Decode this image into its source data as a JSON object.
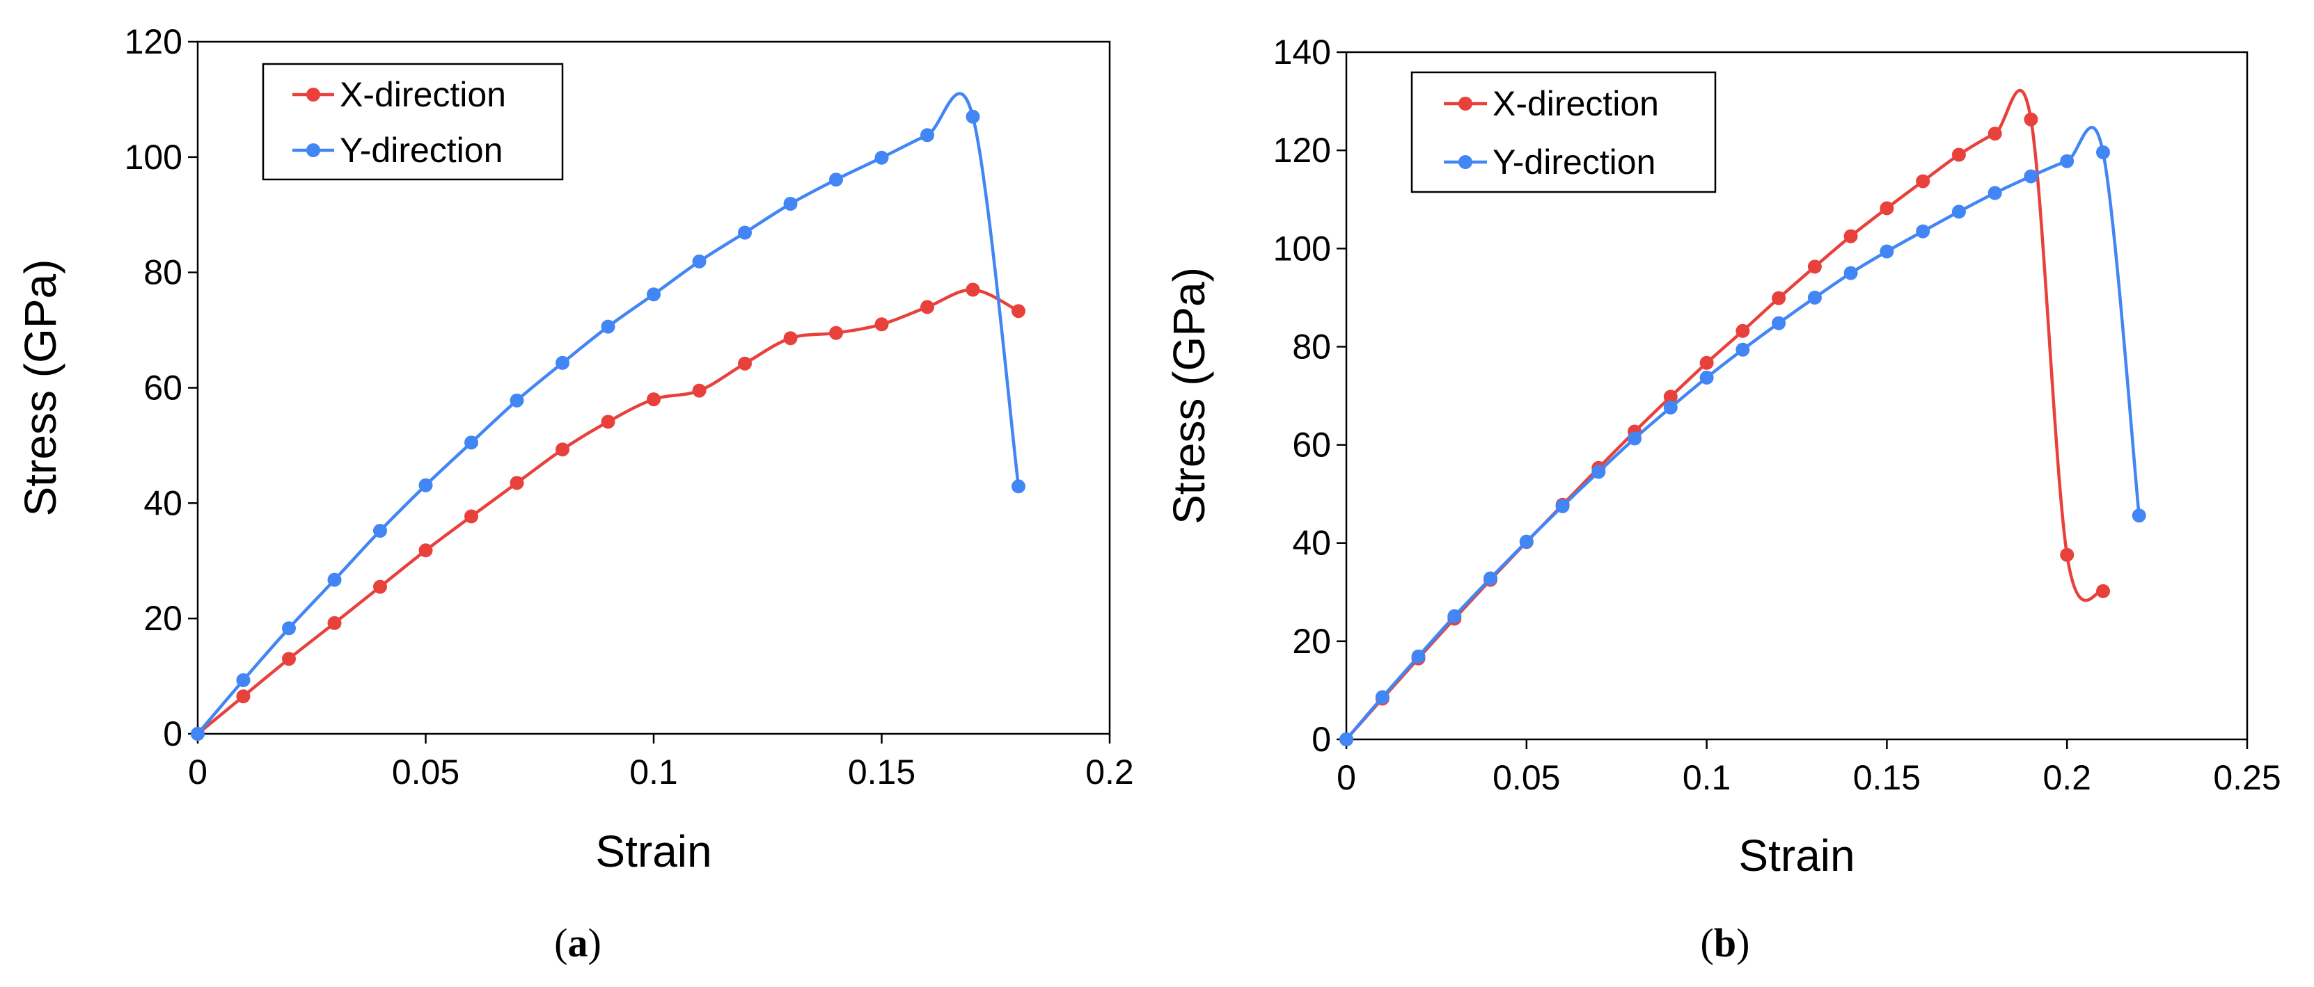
{
  "chart_data": [
    {
      "type": "line",
      "caption_letter": "a",
      "xlabel": "Strain",
      "ylabel": "Stress (GPa)",
      "xlim": [
        0,
        0.2
      ],
      "ylim": [
        0,
        120
      ],
      "xticks": [
        0,
        0.05,
        0.1,
        0.15,
        0.2
      ],
      "xtick_labels": [
        "0",
        "0.05",
        "0.1",
        "0.15",
        "0.2"
      ],
      "yticks": [
        0,
        20,
        40,
        60,
        80,
        100,
        120
      ],
      "ytick_labels": [
        "0",
        "20",
        "40",
        "60",
        "80",
        "100",
        "120"
      ],
      "grid": false,
      "legend_position": "top-left",
      "series": [
        {
          "name": "X-direction",
          "color": "#e8413c",
          "x": [
            0,
            0.01,
            0.02,
            0.03,
            0.04,
            0.05,
            0.06,
            0.07,
            0.08,
            0.09,
            0.1,
            0.11,
            0.12,
            0.13,
            0.14,
            0.15,
            0.16,
            0.17,
            0.18
          ],
          "y": [
            0,
            6.5,
            13,
            19.2,
            25.5,
            31.8,
            37.7,
            43.5,
            49.3,
            54.1,
            58,
            59.5,
            64.2,
            68.6,
            69.5,
            71,
            74,
            77,
            73.3
          ]
        },
        {
          "name": "Y-direction",
          "color": "#4285f4",
          "x": [
            0,
            0.01,
            0.02,
            0.03,
            0.04,
            0.05,
            0.06,
            0.07,
            0.08,
            0.09,
            0.1,
            0.11,
            0.12,
            0.13,
            0.14,
            0.15,
            0.16,
            0.17,
            0.18
          ],
          "y": [
            0,
            9.3,
            18.3,
            26.7,
            35.2,
            43.1,
            50.5,
            57.8,
            64.3,
            70.6,
            76.2,
            81.9,
            86.9,
            91.9,
            96.1,
            99.9,
            103.8,
            107,
            42.9
          ]
        }
      ]
    },
    {
      "type": "line",
      "caption_letter": "b",
      "xlabel": "Strain",
      "ylabel": "Stress (GPa)",
      "xlim": [
        0,
        0.25
      ],
      "ylim": [
        0,
        140
      ],
      "xticks": [
        0,
        0.05,
        0.1,
        0.15,
        0.2,
        0.25
      ],
      "xtick_labels": [
        "0",
        "0.05",
        "0.1",
        "0.15",
        "0.2",
        "0.25"
      ],
      "yticks": [
        0,
        20,
        40,
        60,
        80,
        100,
        120,
        140
      ],
      "ytick_labels": [
        "0",
        "20",
        "40",
        "60",
        "80",
        "100",
        "120",
        "140"
      ],
      "grid": false,
      "legend_position": "top-left",
      "series": [
        {
          "name": "X-direction",
          "color": "#e8413c",
          "x": [
            0,
            0.01,
            0.02,
            0.03,
            0.04,
            0.05,
            0.06,
            0.07,
            0.08,
            0.09,
            0.1,
            0.11,
            0.12,
            0.13,
            0.14,
            0.15,
            0.16,
            0.17,
            0.18,
            0.19,
            0.2,
            0.21
          ],
          "y": [
            0,
            8.3,
            16.5,
            24.6,
            32.5,
            40.2,
            47.8,
            55.3,
            62.7,
            69.8,
            76.7,
            83.2,
            89.9,
            96.3,
            102.5,
            108.2,
            113.7,
            119.1,
            123.4,
            126.3,
            37.6,
            30.2
          ]
        },
        {
          "name": "Y-direction",
          "color": "#4285f4",
          "x": [
            0,
            0.01,
            0.02,
            0.03,
            0.04,
            0.05,
            0.06,
            0.07,
            0.08,
            0.09,
            0.1,
            0.11,
            0.12,
            0.13,
            0.14,
            0.15,
            0.16,
            0.17,
            0.18,
            0.19,
            0.2,
            0.21,
            0.22
          ],
          "y": [
            0,
            8.6,
            16.9,
            25.1,
            32.8,
            40.3,
            47.5,
            54.5,
            61.3,
            67.6,
            73.7,
            79.4,
            84.8,
            90,
            95,
            99.4,
            103.5,
            107.5,
            111.3,
            114.7,
            117.8,
            119.6,
            45.6
          ]
        }
      ]
    }
  ]
}
